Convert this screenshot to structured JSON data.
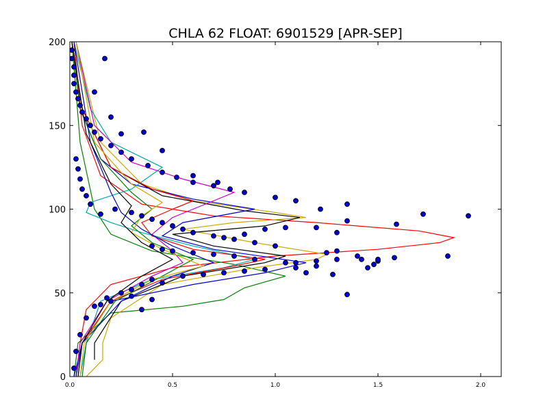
{
  "chart_data": {
    "type": "line",
    "title": "CHLA 62 FLOAT: 6901529 [APR-SEP]",
    "xlabel": "",
    "ylabel": "",
    "xlim": [
      0.0,
      2.1
    ],
    "ylim": [
      0,
      200
    ],
    "x_ticks": [
      0.0,
      0.5,
      1.0,
      1.5,
      2.0
    ],
    "x_tick_labels": [
      "0.0",
      "0.5",
      "1.0",
      "1.5",
      "2.0"
    ],
    "y_ticks": [
      0,
      50,
      100,
      150,
      200
    ],
    "y_tick_labels": [
      "0",
      "50",
      "100",
      "150",
      "200"
    ],
    "grid": false,
    "legend": "none",
    "series": [
      {
        "color": "#ff0000",
        "points": [
          [
            0.03,
            0
          ],
          [
            0.05,
            20
          ],
          [
            0.08,
            40
          ],
          [
            0.2,
            55
          ],
          [
            0.5,
            65
          ],
          [
            1.0,
            72
          ],
          [
            1.5,
            76
          ],
          [
            1.8,
            80
          ],
          [
            1.87,
            83
          ],
          [
            1.7,
            87
          ],
          [
            1.2,
            92
          ],
          [
            0.7,
            96
          ],
          [
            0.35,
            103
          ],
          [
            0.15,
            120
          ],
          [
            0.06,
            150
          ],
          [
            0.02,
            200
          ]
        ]
      },
      {
        "color": "#008000",
        "points": [
          [
            0.02,
            0
          ],
          [
            0.04,
            20
          ],
          [
            0.2,
            38
          ],
          [
            0.55,
            42
          ],
          [
            0.75,
            46
          ],
          [
            0.85,
            53
          ],
          [
            1.05,
            60
          ],
          [
            0.8,
            67
          ],
          [
            0.4,
            75
          ],
          [
            0.2,
            85
          ],
          [
            0.12,
            100
          ],
          [
            0.05,
            140
          ],
          [
            0.01,
            200
          ]
        ]
      },
      {
        "color": "#ccaa00",
        "points": [
          [
            0.08,
            0
          ],
          [
            0.16,
            10
          ],
          [
            0.16,
            20
          ],
          [
            0.2,
            35
          ],
          [
            0.45,
            55
          ],
          [
            0.9,
            65
          ],
          [
            1.2,
            70
          ],
          [
            1.25,
            73
          ],
          [
            0.9,
            80
          ],
          [
            0.55,
            88
          ],
          [
            0.8,
            92
          ],
          [
            1.15,
            95
          ],
          [
            1.0,
            98
          ],
          [
            0.6,
            105
          ],
          [
            0.35,
            115
          ],
          [
            0.15,
            140
          ],
          [
            0.03,
            200
          ]
        ]
      },
      {
        "color": "#000000",
        "points": [
          [
            0.12,
            10
          ],
          [
            0.12,
            20
          ],
          [
            0.25,
            45
          ],
          [
            0.55,
            60
          ],
          [
            0.95,
            68
          ],
          [
            1.05,
            72
          ],
          [
            0.7,
            78
          ],
          [
            0.5,
            85
          ],
          [
            0.95,
            90
          ],
          [
            1.12,
            95
          ],
          [
            0.85,
            99
          ],
          [
            0.45,
            108
          ],
          [
            0.2,
            125
          ],
          [
            0.06,
            160
          ],
          [
            0.01,
            200
          ]
        ]
      },
      {
        "color": "#0000cc",
        "points": [
          [
            0.02,
            0
          ],
          [
            0.06,
            20
          ],
          [
            0.2,
            45
          ],
          [
            0.6,
            55
          ],
          [
            0.95,
            62
          ],
          [
            1.15,
            68
          ],
          [
            0.7,
            76
          ],
          [
            0.45,
            84
          ],
          [
            0.55,
            92
          ],
          [
            0.9,
            100
          ],
          [
            0.6,
            106
          ],
          [
            0.3,
            115
          ],
          [
            0.15,
            130
          ],
          [
            0.05,
            160
          ],
          [
            0.01,
            200
          ]
        ]
      },
      {
        "color": "#00aaaa",
        "points": [
          [
            0.05,
            0
          ],
          [
            0.08,
            20
          ],
          [
            0.15,
            45
          ],
          [
            0.4,
            58
          ],
          [
            0.75,
            65
          ],
          [
            0.9,
            70
          ],
          [
            0.6,
            78
          ],
          [
            0.35,
            86
          ],
          [
            0.2,
            92
          ],
          [
            0.08,
            98
          ],
          [
            0.1,
            104
          ],
          [
            0.3,
            112
          ],
          [
            0.45,
            125
          ],
          [
            0.2,
            140
          ],
          [
            0.1,
            160
          ],
          [
            0.02,
            200
          ]
        ]
      },
      {
        "color": "#cc00cc",
        "points": [
          [
            0.03,
            0
          ],
          [
            0.05,
            20
          ],
          [
            0.18,
            45
          ],
          [
            0.4,
            60
          ],
          [
            0.55,
            68
          ],
          [
            0.5,
            75
          ],
          [
            0.4,
            85
          ],
          [
            0.5,
            95
          ],
          [
            0.8,
            110
          ],
          [
            0.55,
            118
          ],
          [
            0.3,
            128
          ],
          [
            0.12,
            150
          ],
          [
            0.03,
            200
          ]
        ]
      },
      {
        "color": "#ff0000",
        "points": [
          [
            0.04,
            0
          ],
          [
            0.06,
            20
          ],
          [
            0.2,
            45
          ],
          [
            0.45,
            58
          ],
          [
            0.8,
            66
          ],
          [
            0.95,
            70
          ],
          [
            0.6,
            76
          ],
          [
            0.4,
            84
          ],
          [
            0.35,
            92
          ],
          [
            0.5,
            100
          ],
          [
            0.6,
            105
          ],
          [
            0.4,
            112
          ],
          [
            0.2,
            125
          ],
          [
            0.06,
            160
          ],
          [
            0.01,
            200
          ]
        ]
      },
      {
        "color": "#008000",
        "points": [
          [
            0.06,
            0
          ],
          [
            0.08,
            20
          ],
          [
            0.22,
            45
          ],
          [
            0.45,
            60
          ],
          [
            0.6,
            70
          ],
          [
            0.4,
            80
          ],
          [
            0.3,
            90
          ],
          [
            0.4,
            100
          ],
          [
            0.3,
            110
          ],
          [
            0.15,
            130
          ],
          [
            0.05,
            160
          ],
          [
            0.01,
            200
          ]
        ]
      },
      {
        "color": "#0000cc",
        "points": [
          [
            0.03,
            0
          ],
          [
            0.06,
            20
          ],
          [
            0.25,
            45
          ],
          [
            0.5,
            60
          ],
          [
            0.7,
            68
          ],
          [
            0.5,
            78
          ],
          [
            0.35,
            88
          ],
          [
            0.25,
            98
          ],
          [
            0.2,
            110
          ],
          [
            0.1,
            140
          ],
          [
            0.02,
            200
          ]
        ]
      },
      {
        "color": "#ccaa00",
        "points": [
          [
            0.05,
            0
          ],
          [
            0.07,
            20
          ],
          [
            0.2,
            45
          ],
          [
            0.4,
            58
          ],
          [
            0.65,
            66
          ],
          [
            0.45,
            76
          ],
          [
            0.3,
            86
          ],
          [
            0.35,
            96
          ],
          [
            0.45,
            104
          ],
          [
            0.3,
            115
          ],
          [
            0.12,
            140
          ],
          [
            0.03,
            200
          ]
        ]
      },
      {
        "color": "#000000",
        "points": [
          [
            0.04,
            0
          ],
          [
            0.06,
            20
          ],
          [
            0.18,
            45
          ],
          [
            0.35,
            60
          ],
          [
            0.5,
            70
          ],
          [
            0.35,
            80
          ],
          [
            0.25,
            92
          ],
          [
            0.3,
            102
          ],
          [
            0.2,
            115
          ],
          [
            0.08,
            145
          ],
          [
            0.01,
            200
          ]
        ]
      }
    ],
    "points": [
      [
        0.02,
        5
      ],
      [
        0.03,
        15
      ],
      [
        0.05,
        25
      ],
      [
        0.08,
        35
      ],
      [
        0.12,
        42
      ],
      [
        0.18,
        47
      ],
      [
        0.25,
        50
      ],
      [
        0.3,
        52
      ],
      [
        0.35,
        55
      ],
      [
        0.45,
        56
      ],
      [
        0.4,
        58
      ],
      [
        0.55,
        60
      ],
      [
        0.65,
        61
      ],
      [
        0.75,
        62
      ],
      [
        0.85,
        63
      ],
      [
        0.95,
        64
      ],
      [
        1.1,
        65
      ],
      [
        1.15,
        62
      ],
      [
        1.28,
        61
      ],
      [
        1.35,
        49
      ],
      [
        1.45,
        65
      ],
      [
        1.48,
        67
      ],
      [
        1.5,
        69
      ],
      [
        1.42,
        70
      ],
      [
        1.58,
        71
      ],
      [
        1.84,
        72
      ],
      [
        1.3,
        70
      ],
      [
        1.2,
        69
      ],
      [
        1.05,
        68
      ],
      [
        0.9,
        70
      ],
      [
        0.8,
        72
      ],
      [
        0.7,
        73
      ],
      [
        0.6,
        74
      ],
      [
        0.5,
        75
      ],
      [
        0.45,
        76
      ],
      [
        0.4,
        78
      ],
      [
        1.3,
        75
      ],
      [
        1.25,
        74
      ],
      [
        1.0,
        78
      ],
      [
        0.9,
        80
      ],
      [
        0.8,
        82
      ],
      [
        0.7,
        84
      ],
      [
        0.6,
        86
      ],
      [
        0.55,
        88
      ],
      [
        0.5,
        90
      ],
      [
        0.45,
        92
      ],
      [
        0.4,
        94
      ],
      [
        0.35,
        96
      ],
      [
        0.3,
        98
      ],
      [
        1.59,
        91
      ],
      [
        1.72,
        97
      ],
      [
        1.94,
        96
      ],
      [
        1.35,
        93
      ],
      [
        1.22,
        100
      ],
      [
        1.35,
        103
      ],
      [
        1.1,
        105
      ],
      [
        1.0,
        107
      ],
      [
        0.85,
        110
      ],
      [
        0.78,
        112
      ],
      [
        0.7,
        114
      ],
      [
        0.6,
        116
      ],
      [
        0.52,
        119
      ],
      [
        0.45,
        122
      ],
      [
        0.38,
        126
      ],
      [
        0.3,
        130
      ],
      [
        0.25,
        134
      ],
      [
        0.2,
        138
      ],
      [
        0.15,
        142
      ],
      [
        0.12,
        146
      ],
      [
        0.1,
        150
      ],
      [
        0.08,
        154
      ],
      [
        0.06,
        158
      ],
      [
        0.05,
        162
      ],
      [
        0.04,
        166
      ],
      [
        0.03,
        170
      ],
      [
        0.02,
        175
      ],
      [
        0.02,
        180
      ],
      [
        0.02,
        185
      ],
      [
        0.01,
        190
      ],
      [
        0.01,
        195
      ],
      [
        0.17,
        190
      ],
      [
        0.12,
        170
      ],
      [
        0.2,
        155
      ],
      [
        0.25,
        145
      ],
      [
        0.36,
        146
      ],
      [
        0.45,
        135
      ],
      [
        0.6,
        120
      ],
      [
        0.72,
        116
      ],
      [
        0.22,
        100
      ],
      [
        0.15,
        97
      ],
      [
        0.1,
        103
      ],
      [
        0.08,
        108
      ],
      [
        0.06,
        112
      ],
      [
        0.05,
        118
      ],
      [
        0.04,
        124
      ],
      [
        0.03,
        130
      ],
      [
        0.35,
        40
      ],
      [
        0.2,
        45
      ],
      [
        0.15,
        43
      ],
      [
        0.4,
        46
      ],
      [
        0.3,
        48
      ],
      [
        1.2,
        66
      ],
      [
        1.1,
        68
      ],
      [
        1.4,
        72
      ],
      [
        1.5,
        70
      ],
      [
        1.05,
        89
      ],
      [
        0.95,
        88
      ],
      [
        1.2,
        89
      ],
      [
        1.3,
        86
      ],
      [
        0.85,
        85
      ],
      [
        0.75,
        83
      ]
    ]
  }
}
